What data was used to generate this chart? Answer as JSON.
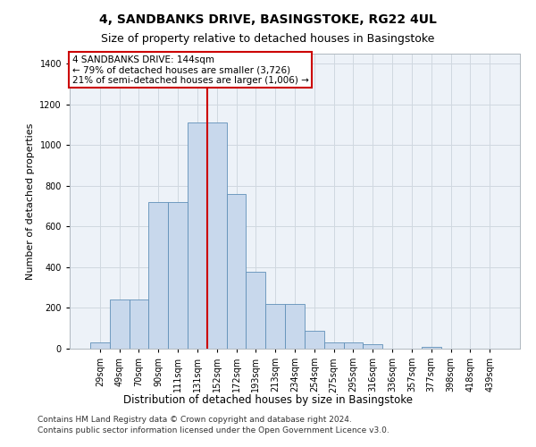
{
  "title_line1": "4, SANDBANKS DRIVE, BASINGSTOKE, RG22 4UL",
  "title_line2": "Size of property relative to detached houses in Basingstoke",
  "xlabel": "Distribution of detached houses by size in Basingstoke",
  "ylabel": "Number of detached properties",
  "footer_line1": "Contains HM Land Registry data © Crown copyright and database right 2024.",
  "footer_line2": "Contains public sector information licensed under the Open Government Licence v3.0.",
  "annotation_line1": "4 SANDBANKS DRIVE: 144sqm",
  "annotation_line2": "← 79% of detached houses are smaller (3,726)",
  "annotation_line3": "21% of semi-detached houses are larger (1,006) →",
  "bar_labels": [
    "29sqm",
    "49sqm",
    "70sqm",
    "90sqm",
    "111sqm",
    "131sqm",
    "152sqm",
    "172sqm",
    "193sqm",
    "213sqm",
    "234sqm",
    "254sqm",
    "275sqm",
    "295sqm",
    "316sqm",
    "336sqm",
    "357sqm",
    "377sqm",
    "398sqm",
    "418sqm",
    "439sqm"
  ],
  "bar_values": [
    30,
    240,
    240,
    720,
    720,
    1110,
    1110,
    760,
    380,
    220,
    220,
    90,
    30,
    30,
    20,
    0,
    0,
    10,
    0,
    0,
    0
  ],
  "bar_color": "#c8d8ec",
  "bar_edge_color": "#6090b8",
  "vline_color": "#cc0000",
  "vline_x": 5.5,
  "annotation_box_color": "#ffffff",
  "annotation_box_edge": "#cc0000",
  "grid_color": "#d0d8e0",
  "background_color": "#edf2f8",
  "ylim": [
    0,
    1450
  ],
  "yticks": [
    0,
    200,
    400,
    600,
    800,
    1000,
    1200,
    1400
  ],
  "title_fontsize": 10,
  "subtitle_fontsize": 9,
  "xlabel_fontsize": 8.5,
  "ylabel_fontsize": 8,
  "tick_fontsize": 7,
  "annotation_fontsize": 7.5,
  "footer_fontsize": 6.5
}
